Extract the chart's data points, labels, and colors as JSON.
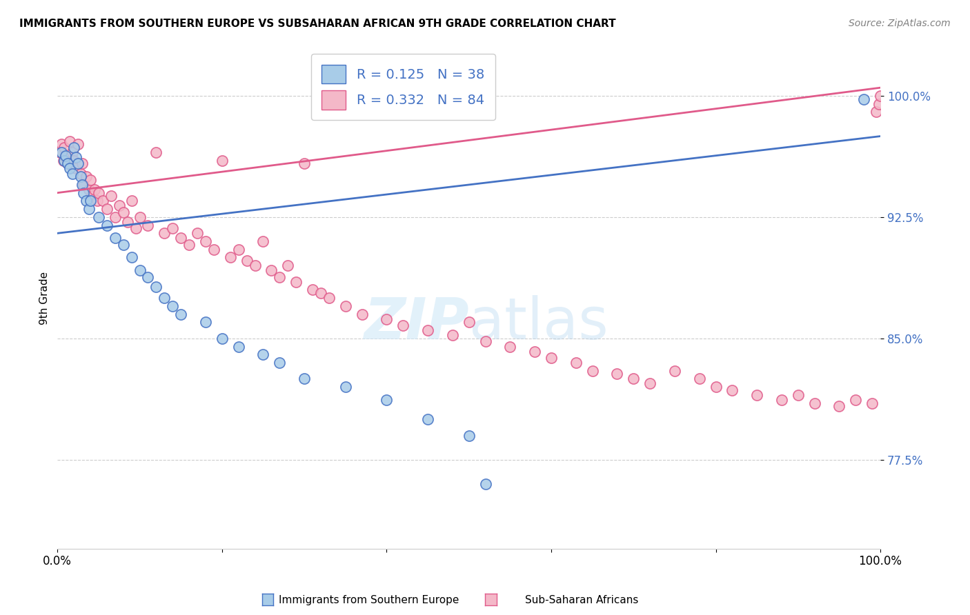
{
  "title": "IMMIGRANTS FROM SOUTHERN EUROPE VS SUBSAHARAN AFRICAN 9TH GRADE CORRELATION CHART",
  "source": "Source: ZipAtlas.com",
  "ylabel": "9th Grade",
  "xlim": [
    0.0,
    1.0
  ],
  "ylim": [
    0.72,
    1.03
  ],
  "yticks": [
    0.775,
    0.85,
    0.925,
    1.0
  ],
  "ytick_labels": [
    "77.5%",
    "85.0%",
    "92.5%",
    "100.0%"
  ],
  "blue_R": 0.125,
  "blue_N": 38,
  "pink_R": 0.332,
  "pink_N": 84,
  "blue_color": "#a8cce8",
  "pink_color": "#f4b8c8",
  "blue_line_color": "#4472c4",
  "pink_line_color": "#e05a8a",
  "legend_label_blue": "Immigrants from Southern Europe",
  "legend_label_pink": "Sub-Saharan Africans",
  "blue_scatter_x": [
    0.005,
    0.008,
    0.01,
    0.012,
    0.015,
    0.018,
    0.02,
    0.022,
    0.025,
    0.028,
    0.03,
    0.032,
    0.035,
    0.038,
    0.04,
    0.05,
    0.06,
    0.07,
    0.08,
    0.09,
    0.1,
    0.11,
    0.12,
    0.13,
    0.14,
    0.15,
    0.18,
    0.2,
    0.22,
    0.25,
    0.27,
    0.3,
    0.35,
    0.4,
    0.45,
    0.5,
    0.52,
    0.98
  ],
  "blue_scatter_y": [
    0.965,
    0.96,
    0.963,
    0.958,
    0.955,
    0.952,
    0.968,
    0.962,
    0.958,
    0.95,
    0.945,
    0.94,
    0.935,
    0.93,
    0.935,
    0.925,
    0.92,
    0.912,
    0.908,
    0.9,
    0.892,
    0.888,
    0.882,
    0.875,
    0.87,
    0.865,
    0.86,
    0.85,
    0.845,
    0.84,
    0.835,
    0.825,
    0.82,
    0.812,
    0.8,
    0.79,
    0.76,
    0.998
  ],
  "pink_scatter_x": [
    0.003,
    0.005,
    0.007,
    0.008,
    0.01,
    0.012,
    0.015,
    0.018,
    0.02,
    0.022,
    0.025,
    0.028,
    0.03,
    0.032,
    0.035,
    0.038,
    0.04,
    0.042,
    0.045,
    0.048,
    0.05,
    0.055,
    0.06,
    0.065,
    0.07,
    0.075,
    0.08,
    0.085,
    0.09,
    0.095,
    0.1,
    0.11,
    0.12,
    0.13,
    0.14,
    0.15,
    0.16,
    0.17,
    0.18,
    0.19,
    0.2,
    0.21,
    0.22,
    0.23,
    0.24,
    0.25,
    0.26,
    0.27,
    0.28,
    0.29,
    0.3,
    0.31,
    0.32,
    0.33,
    0.35,
    0.37,
    0.4,
    0.42,
    0.45,
    0.48,
    0.5,
    0.52,
    0.55,
    0.58,
    0.6,
    0.63,
    0.65,
    0.68,
    0.7,
    0.72,
    0.75,
    0.78,
    0.8,
    0.82,
    0.85,
    0.88,
    0.9,
    0.92,
    0.95,
    0.97,
    0.99,
    0.995,
    0.998,
    1.0
  ],
  "pink_scatter_y": [
    0.965,
    0.97,
    0.96,
    0.968,
    0.962,
    0.958,
    0.972,
    0.965,
    0.96,
    0.955,
    0.97,
    0.952,
    0.958,
    0.945,
    0.95,
    0.942,
    0.948,
    0.938,
    0.942,
    0.935,
    0.94,
    0.935,
    0.93,
    0.938,
    0.925,
    0.932,
    0.928,
    0.922,
    0.935,
    0.918,
    0.925,
    0.92,
    0.965,
    0.915,
    0.918,
    0.912,
    0.908,
    0.915,
    0.91,
    0.905,
    0.96,
    0.9,
    0.905,
    0.898,
    0.895,
    0.91,
    0.892,
    0.888,
    0.895,
    0.885,
    0.958,
    0.88,
    0.878,
    0.875,
    0.87,
    0.865,
    0.862,
    0.858,
    0.855,
    0.852,
    0.86,
    0.848,
    0.845,
    0.842,
    0.838,
    0.835,
    0.83,
    0.828,
    0.825,
    0.822,
    0.83,
    0.825,
    0.82,
    0.818,
    0.815,
    0.812,
    0.815,
    0.81,
    0.808,
    0.812,
    0.81,
    0.99,
    0.995,
    1.0
  ]
}
